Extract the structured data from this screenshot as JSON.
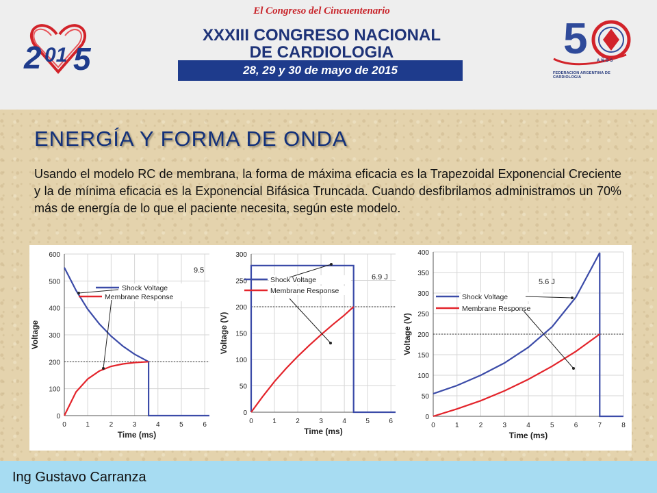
{
  "header": {
    "subtitle": "El Congreso del Cincuentenario",
    "title_line1": "XXXIII CONGRESO NACIONAL",
    "title_line2": "DE CARDIOLOGIA",
    "dates": "28, 29 y 30 de mayo de 2015",
    "right_logo_anos": "AÑOS",
    "right_logo_text": "FEDERACION ARGENTINA DE CARDIOLOGIA",
    "colors": {
      "red": "#c8242a",
      "blue": "#1e3b8c"
    }
  },
  "slide": {
    "title": "ENERGÍA Y FORMA DE ONDA",
    "body": "Usando el modelo RC de membrana, la forma de máxima eficacia es la Trapezoidal Exponencial Creciente y la de mínima eficacia es la Exponencial Bifásica Truncada. Cuando desfibrilamos administramos un 70% más de energía de lo que el paciente necesita, según este modelo."
  },
  "footer": {
    "author": "Ing Gustavo Carranza"
  },
  "chart_data": [
    {
      "type": "line",
      "xlabel": "Time (ms)",
      "ylabel": "Voltage",
      "xlim": [
        0,
        6.2
      ],
      "ylim": [
        0,
        600
      ],
      "xticks": [
        0,
        1,
        2,
        3,
        4,
        5,
        6
      ],
      "yticks": [
        0,
        100,
        200,
        300,
        400,
        500,
        600
      ],
      "threshold": 200,
      "energy_label": "9.5",
      "series": [
        {
          "name": "Shock Voltage",
          "color": "#3b4ba8",
          "x": [
            0,
            0.5,
            1,
            1.5,
            2,
            2.5,
            3,
            3.6,
            3.6,
            6.2
          ],
          "y": [
            550,
            465,
            395,
            340,
            295,
            258,
            228,
            200,
            0,
            0
          ]
        },
        {
          "name": "Membrane Response",
          "color": "#e3242b",
          "x": [
            0,
            0.5,
            1,
            1.5,
            2,
            2.5,
            3,
            3.6
          ],
          "y": [
            0,
            88,
            136,
            166,
            183,
            192,
            197,
            200
          ]
        }
      ]
    },
    {
      "type": "line",
      "xlabel": "Time (ms)",
      "ylabel": "Voltage (V)",
      "xlim": [
        0,
        6.2
      ],
      "ylim": [
        0,
        300
      ],
      "xticks": [
        0,
        1,
        2,
        3,
        4,
        5,
        6
      ],
      "yticks": [
        0,
        50,
        100,
        150,
        200,
        250,
        300
      ],
      "threshold": 200,
      "energy_label": "6.9 J",
      "series": [
        {
          "name": "Shock Voltage",
          "color": "#3b4ba8",
          "x": [
            0,
            0,
            4.4,
            4.4,
            6.2
          ],
          "y": [
            0,
            278,
            278,
            0,
            0
          ]
        },
        {
          "name": "Membrane Response",
          "color": "#e3242b",
          "x": [
            0,
            0.5,
            1,
            1.5,
            2,
            2.5,
            3,
            3.5,
            4,
            4.4
          ],
          "y": [
            0,
            30,
            58,
            83,
            106,
            127,
            147,
            166,
            184,
            200
          ]
        }
      ]
    },
    {
      "type": "line",
      "xlabel": "Time (ms)",
      "ylabel": "Voltage (V)",
      "xlim": [
        0,
        8
      ],
      "ylim": [
        0,
        400
      ],
      "xticks": [
        0,
        1,
        2,
        3,
        4,
        5,
        6,
        7,
        8
      ],
      "yticks": [
        0,
        50,
        100,
        150,
        200,
        250,
        300,
        350,
        400
      ],
      "threshold": 200,
      "energy_label": "5.6 J",
      "series": [
        {
          "name": "Shock Voltage",
          "color": "#3b4ba8",
          "x": [
            0,
            1,
            2,
            3,
            4,
            5,
            6,
            7,
            7,
            8
          ],
          "y": [
            55,
            75,
            100,
            130,
            168,
            218,
            290,
            398,
            0,
            0
          ]
        },
        {
          "name": "Membrane Response",
          "color": "#e3242b",
          "x": [
            0,
            1,
            2,
            3,
            4,
            5,
            6,
            7
          ],
          "y": [
            0,
            18,
            38,
            62,
            90,
            122,
            158,
            200
          ]
        }
      ]
    }
  ]
}
